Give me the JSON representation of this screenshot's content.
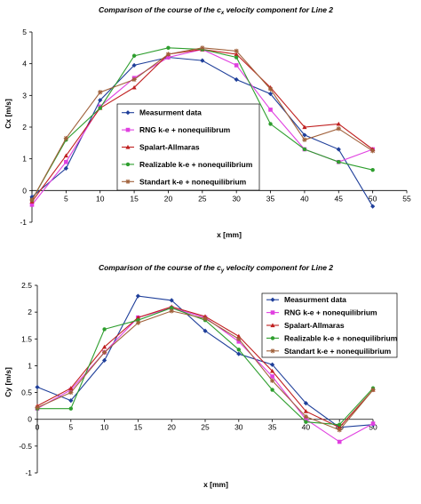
{
  "chart_data": [
    {
      "type": "line",
      "title": "Comparison of the course of the c",
      "title_sub": "x",
      "title_tail": " velocity component for Line 2",
      "xlabel": "x [mm]",
      "ylabel": "Cx [m/s]",
      "xlim": [
        0,
        55
      ],
      "ylim": [
        -1,
        5
      ],
      "xticks": [
        0,
        5,
        10,
        15,
        20,
        25,
        30,
        35,
        40,
        45,
        50,
        55
      ],
      "yticks": [
        -1,
        0,
        1,
        2,
        3,
        4,
        5
      ],
      "grid": false,
      "legend_position": "right",
      "series": [
        {
          "name": "Measurment data",
          "color": "#1f3f9a",
          "marker": "diamond",
          "x": [
            0,
            5,
            10,
            15,
            20,
            25,
            30,
            35,
            40,
            45,
            50
          ],
          "y": [
            -0.2,
            0.7,
            2.85,
            3.95,
            4.2,
            4.1,
            3.5,
            3.05,
            1.75,
            1.3,
            -0.5
          ]
        },
        {
          "name": "RNG k-e + nonequilibrum",
          "color": "#e040e0",
          "marker": "square",
          "x": [
            0,
            5,
            10,
            15,
            20,
            25,
            30,
            35,
            40,
            45,
            50
          ],
          "y": [
            -0.45,
            0.9,
            2.65,
            3.55,
            4.2,
            4.45,
            3.95,
            2.55,
            1.3,
            0.9,
            1.3
          ]
        },
        {
          "name": "Spalart-Allmaras",
          "color": "#c02020",
          "marker": "triangle",
          "x": [
            0,
            5,
            10,
            15,
            20,
            25,
            30,
            35,
            40,
            45,
            50
          ],
          "y": [
            -0.35,
            1.1,
            2.6,
            3.25,
            4.3,
            4.45,
            4.3,
            3.25,
            2.0,
            2.1,
            1.3
          ]
        },
        {
          "name": "Realizable k-e + nonequilibrium",
          "color": "#2e9e2e",
          "marker": "circle",
          "x": [
            0,
            5,
            10,
            15,
            20,
            25,
            30,
            35,
            40,
            45,
            50
          ],
          "y": [
            -0.3,
            1.6,
            2.6,
            4.25,
            4.5,
            4.45,
            4.2,
            2.1,
            1.3,
            0.9,
            0.65
          ]
        },
        {
          "name": "Standart k-e + nonequilibrium",
          "color": "#a0603a",
          "marker": "star",
          "x": [
            0,
            5,
            10,
            15,
            20,
            25,
            30,
            35,
            40,
            45,
            50
          ],
          "y": [
            -0.3,
            1.65,
            3.1,
            3.5,
            4.3,
            4.5,
            4.4,
            3.2,
            1.6,
            1.95,
            1.25
          ]
        }
      ]
    },
    {
      "type": "line",
      "title": "Comparison of the course of the c",
      "title_sub": "y",
      "title_tail": " velocity component for Line 2",
      "xlabel": "x [mm]",
      "ylabel": "Cy [m/s]",
      "xlim": [
        0,
        50
      ],
      "ylim": [
        -1,
        2.5
      ],
      "xticks": [
        0,
        5,
        10,
        15,
        20,
        25,
        30,
        35,
        40,
        45,
        50
      ],
      "yticks": [
        -1,
        -0.5,
        0,
        0.5,
        1,
        1.5,
        2,
        2.5
      ],
      "grid": false,
      "legend_position": "right",
      "series": [
        {
          "name": "Measurment data",
          "color": "#1f3f9a",
          "marker": "diamond",
          "x": [
            0,
            5,
            10,
            15,
            20,
            25,
            30,
            35,
            40,
            45,
            50
          ],
          "y": [
            0.6,
            0.35,
            1.1,
            2.3,
            2.22,
            1.65,
            1.22,
            1.02,
            0.3,
            -0.15,
            -0.1
          ]
        },
        {
          "name": "RNG k-e + nonequilibrium",
          "color": "#e040e0",
          "marker": "square",
          "x": [
            0,
            5,
            10,
            15,
            20,
            25,
            30,
            35,
            40,
            45,
            50
          ],
          "y": [
            0.2,
            0.55,
            1.25,
            1.9,
            2.08,
            1.9,
            1.45,
            0.8,
            0.0,
            -0.42,
            -0.08
          ]
        },
        {
          "name": "Spalart-Allmaras",
          "color": "#c02020",
          "marker": "triangle",
          "x": [
            0,
            5,
            10,
            15,
            20,
            25,
            30,
            35,
            40,
            45,
            50
          ],
          "y": [
            0.25,
            0.58,
            1.35,
            1.9,
            2.1,
            1.92,
            1.55,
            0.9,
            0.15,
            -0.15,
            0.55
          ]
        },
        {
          "name": "Realizable k-e + nonequilibrium",
          "color": "#2e9e2e",
          "marker": "circle",
          "x": [
            0,
            5,
            10,
            15,
            20,
            25,
            30,
            35,
            40,
            45,
            50
          ],
          "y": [
            0.2,
            0.2,
            1.68,
            1.85,
            2.08,
            1.85,
            1.3,
            0.55,
            -0.05,
            -0.1,
            0.58
          ]
        },
        {
          "name": "Standart k-e + nonequilibrium",
          "color": "#a0603a",
          "marker": "star",
          "x": [
            0,
            5,
            10,
            15,
            20,
            25,
            30,
            35,
            40,
            45,
            50
          ],
          "y": [
            0.22,
            0.5,
            1.25,
            1.8,
            2.02,
            1.88,
            1.5,
            0.72,
            0.05,
            -0.2,
            0.55
          ]
        }
      ]
    }
  ]
}
